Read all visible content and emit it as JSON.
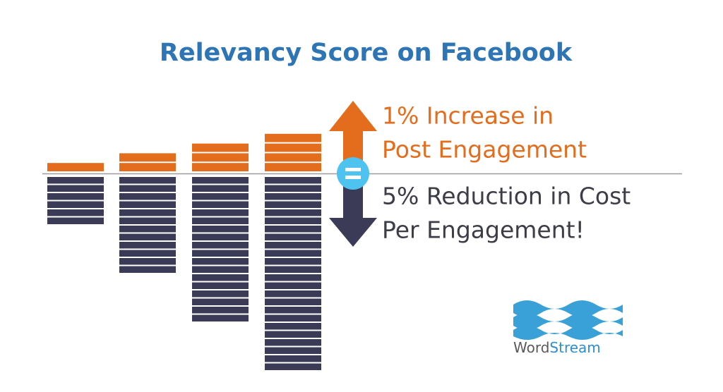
{
  "title": "Relevancy Score on Facebook",
  "upper_message": {
    "line1": "1% Increase in",
    "line2": "Post Engagement"
  },
  "lower_message": {
    "line1": "5% Reduction in Cost",
    "line2": "Per Engagement!"
  },
  "logo": {
    "word": "Word",
    "stream": "Stream"
  }
}
